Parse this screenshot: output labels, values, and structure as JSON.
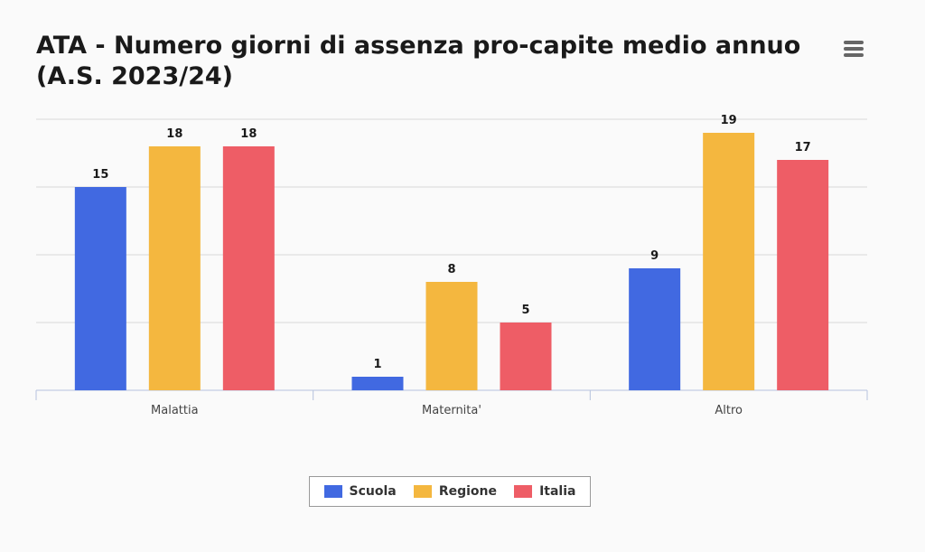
{
  "header": {
    "title": "ATA - Numero giorni di assenza pro-capite medio annuo (A.S. 2023/24)"
  },
  "menu": {
    "icon": "hamburger-menu-icon"
  },
  "chart_data": {
    "type": "bar",
    "title": "ATA - Numero giorni di assenza pro-capite medio annuo (A.S. 2023/24)",
    "categories": [
      "Malattia",
      "Maternita'",
      "Altro"
    ],
    "series": [
      {
        "name": "Scuola",
        "values": [
          15,
          1,
          9
        ],
        "color": "#4169E1"
      },
      {
        "name": "Regione",
        "values": [
          18,
          8,
          19
        ],
        "color": "#F4B73F"
      },
      {
        "name": "Italia",
        "values": [
          18,
          5,
          17
        ],
        "color": "#EE5D66"
      }
    ],
    "xlabel": "",
    "ylabel": "",
    "ylim": [
      0,
      20
    ],
    "grid": true,
    "legend": "bottom-center",
    "data_labels": true
  }
}
